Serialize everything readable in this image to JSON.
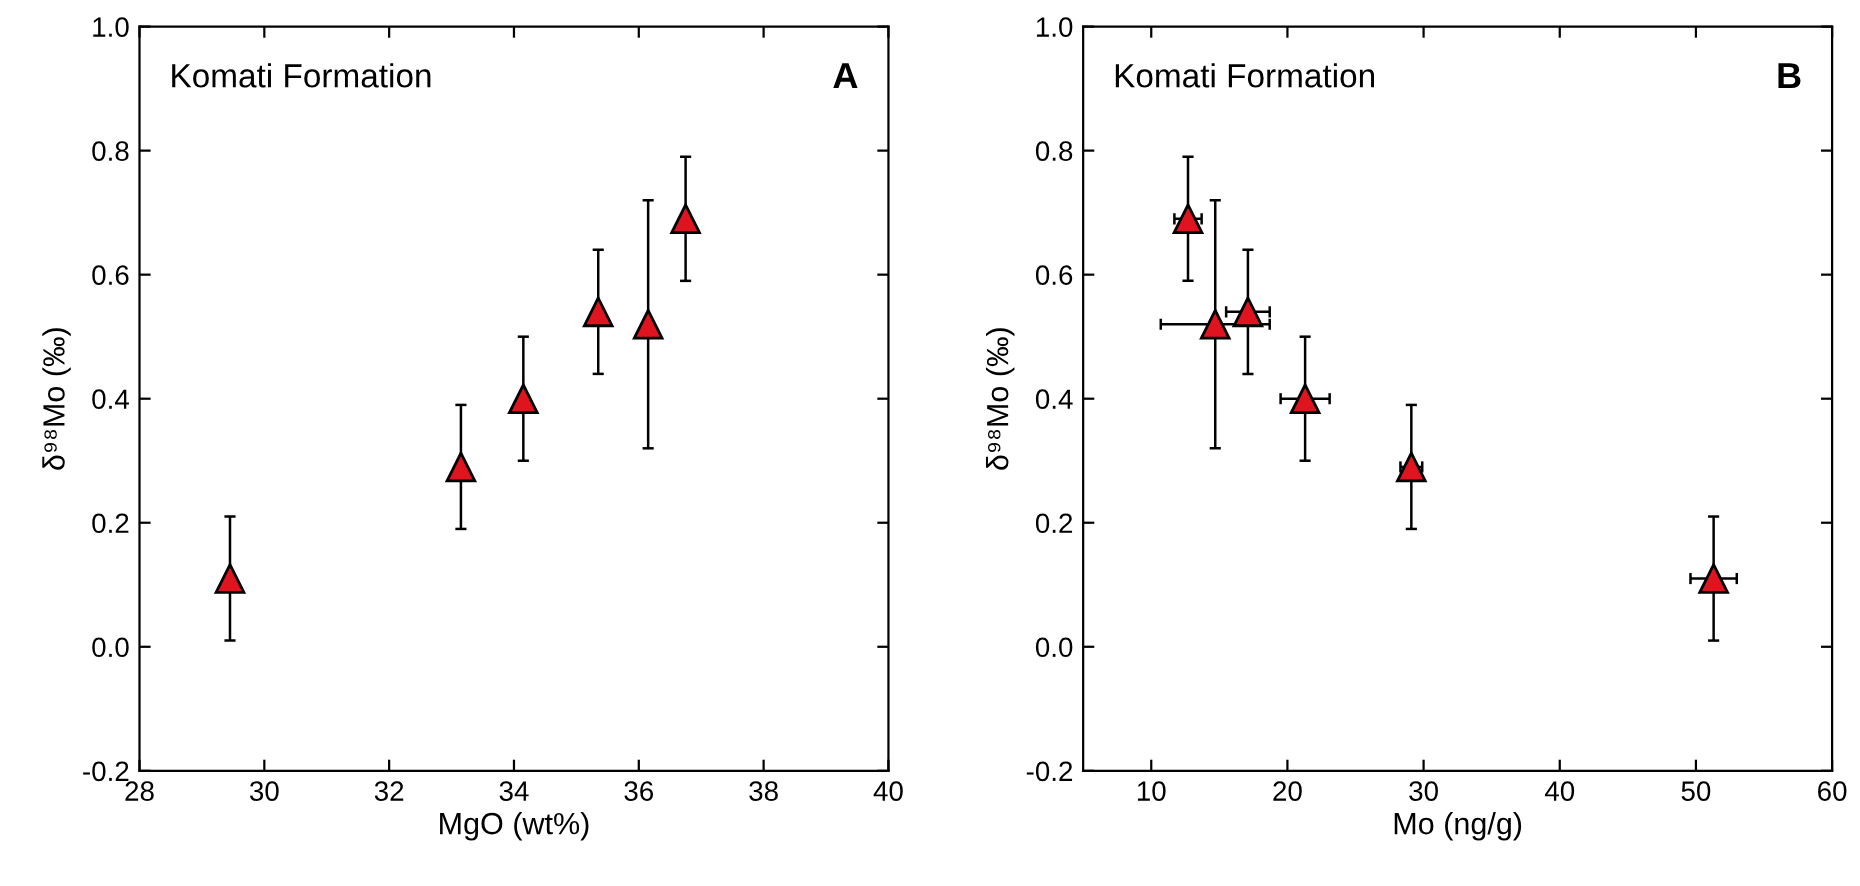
{
  "chart_data": [
    {
      "type": "scatter",
      "xlabel": "MgO (wt%)",
      "ylabel": "δ⁹⁸Mo (‰)",
      "annotations": [
        "Komati Formation",
        "A"
      ],
      "x": [
        29.45,
        33.15,
        34.15,
        35.35,
        36.15,
        36.75
      ],
      "series": [
        {
          "color": "#e0141e",
          "values": [
            0.11,
            0.29,
            0.4,
            0.54,
            0.52,
            0.69
          ],
          "errors": [
            0.1,
            0.1,
            0.1,
            0.1,
            0.2,
            0.1
          ]
        }
      ],
      "xlim": [
        28,
        40
      ],
      "xticks": [
        28,
        30,
        32,
        34,
        36,
        38,
        40
      ],
      "ylim": [
        -0.2,
        1.0
      ],
      "yticks": [
        {
          "value": -0.2,
          "label": "-0.2"
        },
        {
          "value": 0,
          "label": "0.0"
        },
        {
          "value": 0.2,
          "label": "0.2"
        },
        {
          "value": 0.4,
          "label": "0.4"
        },
        {
          "value": 0.6,
          "label": "0.6"
        },
        {
          "value": 0.8,
          "label": "0.8"
        },
        {
          "value": 1.0,
          "label": "1.0"
        }
      ],
      "marker": "triangle",
      "grid": false,
      "legend": false
    },
    {
      "type": "scatter",
      "xlabel": "Mo (ng/g)",
      "ylabel": "δ⁹⁸Mo (‰)",
      "annotations": [
        "Komati Formation",
        "B"
      ],
      "x": [
        12.7,
        14.7,
        17.1,
        21.3,
        29.1,
        51.3
      ],
      "series": [
        {
          "color": "#e0141e",
          "values": [
            0.69,
            0.52,
            0.54,
            0.4,
            0.29,
            0.11
          ],
          "errors": [
            0.1,
            0.2,
            0.1,
            0.1,
            0.1,
            0.1
          ],
          "xerrors": [
            1.0,
            4.0,
            1.6,
            1.8,
            0.8,
            1.7
          ]
        }
      ],
      "xlim": [
        5,
        60
      ],
      "xticks": [
        10,
        20,
        30,
        40,
        50,
        60
      ],
      "ylim": [
        -0.2,
        1.0
      ],
      "yticks": [
        {
          "value": -0.2,
          "label": "-0.2"
        },
        {
          "value": 0,
          "label": "0.0"
        },
        {
          "value": 0.2,
          "label": "0.2"
        },
        {
          "value": 0.4,
          "label": "0.4"
        },
        {
          "value": 0.6,
          "label": "0.6"
        },
        {
          "value": 0.8,
          "label": "0.8"
        },
        {
          "value": 1.0,
          "label": "1.0"
        }
      ],
      "marker": "triangle",
      "grid": false,
      "legend": false
    }
  ]
}
